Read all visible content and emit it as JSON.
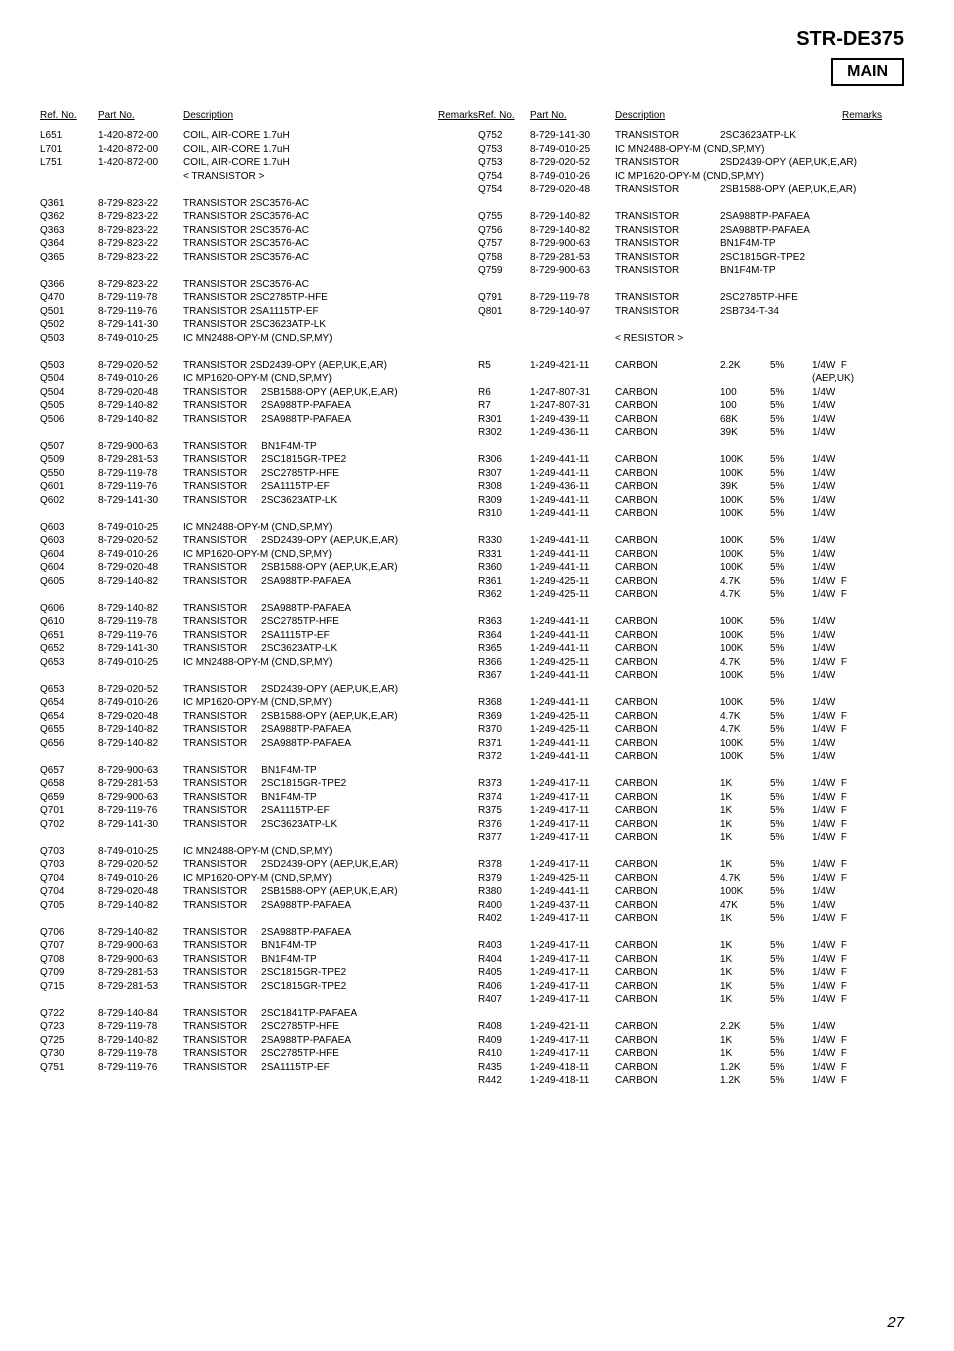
{
  "title": "STR-DE375",
  "mainLabel": "MAIN",
  "pageNumber": "27",
  "headers": {
    "ref1": "Ref. No.",
    "part1": "Part No.",
    "desc1": "Description",
    "rem1": "Remarks",
    "ref2": "Ref. No.",
    "part2": "Part No.",
    "desc2": "Description",
    "rem2": "Remarks"
  },
  "sectionTransistor": "< TRANSISTOR >",
  "sectionResistor": "< RESISTOR >",
  "leftRows": [
    {
      "r": "L651",
      "p": "1-420-872-00",
      "d": "COIL, AIR-CORE 1.7uH"
    },
    {
      "r": "L701",
      "p": "1-420-872-00",
      "d": "COIL, AIR-CORE 1.7uH"
    },
    {
      "r": "L751",
      "p": "1-420-872-00",
      "d": "COIL, AIR-CORE 1.7uH"
    },
    {
      "section": "transistor"
    },
    {
      "blank": true
    },
    {
      "r": "Q361",
      "p": "8-729-823-22",
      "d": "TRANSISTOR 2SC3576-AC"
    },
    {
      "r": "Q362",
      "p": "8-729-823-22",
      "d": "TRANSISTOR 2SC3576-AC"
    },
    {
      "r": "Q363",
      "p": "8-729-823-22",
      "d": "TRANSISTOR 2SC3576-AC"
    },
    {
      "r": "Q364",
      "p": "8-729-823-22",
      "d": "TRANSISTOR 2SC3576-AC"
    },
    {
      "r": "Q365",
      "p": "8-729-823-22",
      "d": "TRANSISTOR 2SC3576-AC"
    },
    {
      "blank": true
    },
    {
      "r": "Q366",
      "p": "8-729-823-22",
      "d": "TRANSISTOR 2SC3576-AC"
    },
    {
      "r": "Q470",
      "p": "8-729-119-78",
      "d": "TRANSISTOR 2SC2785TP-HFE"
    },
    {
      "r": "Q501",
      "p": "8-729-119-76",
      "d": "TRANSISTOR 2SA1115TP-EF"
    },
    {
      "r": "Q502",
      "p": "8-729-141-30",
      "d": "TRANSISTOR 2SC3623ATP-LK"
    },
    {
      "r": "Q503",
      "p": "8-749-010-25",
      "d": "IC MN2488-OPY-M (CND,SP,MY)"
    },
    {
      "blank": true
    },
    {
      "r": "Q503",
      "p": "8-729-020-52",
      "d": "TRANSISTOR 2SD2439-OPY (AEP,UK,E,AR)"
    },
    {
      "r": "Q504",
      "p": "8-749-010-26",
      "d": "IC MP1620-OPY-M (CND,SP,MY)"
    },
    {
      "r": "Q504",
      "p": "8-729-020-48",
      "d": "TRANSISTOR     2SB1588-OPY (AEP,UK,E,AR)"
    },
    {
      "r": "Q505",
      "p": "8-729-140-82",
      "d": "TRANSISTOR     2SA988TP-PAFAEA"
    },
    {
      "r": "Q506",
      "p": "8-729-140-82",
      "d": "TRANSISTOR     2SA988TP-PAFAEA"
    },
    {
      "blank": true
    },
    {
      "r": "Q507",
      "p": "8-729-900-63",
      "d": "TRANSISTOR     BN1F4M-TP"
    },
    {
      "r": "Q509",
      "p": "8-729-281-53",
      "d": "TRANSISTOR     2SC1815GR-TPE2"
    },
    {
      "r": "Q550",
      "p": "8-729-119-78",
      "d": "TRANSISTOR     2SC2785TP-HFE"
    },
    {
      "r": "Q601",
      "p": "8-729-119-76",
      "d": "TRANSISTOR     2SA1115TP-EF"
    },
    {
      "r": "Q602",
      "p": "8-729-141-30",
      "d": "TRANSISTOR     2SC3623ATP-LK"
    },
    {
      "blank": true
    },
    {
      "r": "Q603",
      "p": "8-749-010-25",
      "d": "IC MN2488-OPY-M (CND,SP,MY)"
    },
    {
      "r": "Q603",
      "p": "8-729-020-52",
      "d": "TRANSISTOR     2SD2439-OPY (AEP,UK,E,AR)"
    },
    {
      "r": "Q604",
      "p": "8-749-010-26",
      "d": "IC MP1620-OPY-M (CND,SP,MY)"
    },
    {
      "r": "Q604",
      "p": "8-729-020-48",
      "d": "TRANSISTOR     2SB1588-OPY (AEP,UK,E,AR)"
    },
    {
      "r": "Q605",
      "p": "8-729-140-82",
      "d": "TRANSISTOR     2SA988TP-PAFAEA"
    },
    {
      "blank": true
    },
    {
      "r": "Q606",
      "p": "8-729-140-82",
      "d": "TRANSISTOR     2SA988TP-PAFAEA"
    },
    {
      "r": "Q610",
      "p": "8-729-119-78",
      "d": "TRANSISTOR     2SC2785TP-HFE"
    },
    {
      "r": "Q651",
      "p": "8-729-119-76",
      "d": "TRANSISTOR     2SA1115TP-EF"
    },
    {
      "r": "Q652",
      "p": "8-729-141-30",
      "d": "TRANSISTOR     2SC3623ATP-LK"
    },
    {
      "r": "Q653",
      "p": "8-749-010-25",
      "d": "IC MN2488-OPY-M (CND,SP,MY)"
    },
    {
      "blank": true
    },
    {
      "r": "Q653",
      "p": "8-729-020-52",
      "d": "TRANSISTOR     2SD2439-OPY (AEP,UK,E,AR)"
    },
    {
      "r": "Q654",
      "p": "8-749-010-26",
      "d": "IC MP1620-OPY-M (CND,SP,MY)"
    },
    {
      "r": "Q654",
      "p": "8-729-020-48",
      "d": "TRANSISTOR     2SB1588-OPY (AEP,UK,E,AR)"
    },
    {
      "r": "Q655",
      "p": "8-729-140-82",
      "d": "TRANSISTOR     2SA988TP-PAFAEA"
    },
    {
      "r": "Q656",
      "p": "8-729-140-82",
      "d": "TRANSISTOR     2SA988TP-PAFAEA"
    },
    {
      "blank": true
    },
    {
      "r": "Q657",
      "p": "8-729-900-63",
      "d": "TRANSISTOR     BN1F4M-TP"
    },
    {
      "r": "Q658",
      "p": "8-729-281-53",
      "d": "TRANSISTOR     2SC1815GR-TPE2"
    },
    {
      "r": "Q659",
      "p": "8-729-900-63",
      "d": "TRANSISTOR     BN1F4M-TP"
    },
    {
      "r": "Q701",
      "p": "8-729-119-76",
      "d": "TRANSISTOR     2SA1115TP-EF"
    },
    {
      "r": "Q702",
      "p": "8-729-141-30",
      "d": "TRANSISTOR     2SC3623ATP-LK"
    },
    {
      "blank": true
    },
    {
      "r": "Q703",
      "p": "8-749-010-25",
      "d": "IC MN2488-OPY-M (CND,SP,MY)"
    },
    {
      "r": "Q703",
      "p": "8-729-020-52",
      "d": "TRANSISTOR     2SD2439-OPY (AEP,UK,E,AR)"
    },
    {
      "r": "Q704",
      "p": "8-749-010-26",
      "d": "IC MP1620-OPY-M (CND,SP,MY)"
    },
    {
      "r": "Q704",
      "p": "8-729-020-48",
      "d": "TRANSISTOR     2SB1588-OPY (AEP,UK,E,AR)"
    },
    {
      "r": "Q705",
      "p": "8-729-140-82",
      "d": "TRANSISTOR     2SA988TP-PAFAEA"
    },
    {
      "blank": true
    },
    {
      "r": "Q706",
      "p": "8-729-140-82",
      "d": "TRANSISTOR     2SA988TP-PAFAEA"
    },
    {
      "r": "Q707",
      "p": "8-729-900-63",
      "d": "TRANSISTOR     BN1F4M-TP"
    },
    {
      "r": "Q708",
      "p": "8-729-900-63",
      "d": "TRANSISTOR     BN1F4M-TP"
    },
    {
      "r": "Q709",
      "p": "8-729-281-53",
      "d": "TRANSISTOR     2SC1815GR-TPE2"
    },
    {
      "r": "Q715",
      "p": "8-729-281-53",
      "d": "TRANSISTOR     2SC1815GR-TPE2"
    },
    {
      "blank": true
    },
    {
      "r": "Q722",
      "p": "8-729-140-84",
      "d": "TRANSISTOR     2SC1841TP-PAFAEA"
    },
    {
      "r": "Q723",
      "p": "8-729-119-78",
      "d": "TRANSISTOR     2SC2785TP-HFE"
    },
    {
      "r": "Q725",
      "p": "8-729-140-82",
      "d": "TRANSISTOR     2SA988TP-PAFAEA"
    },
    {
      "r": "Q730",
      "p": "8-729-119-78",
      "d": "TRANSISTOR     2SC2785TP-HFE"
    },
    {
      "r": "Q751",
      "p": "8-729-119-76",
      "d": "TRANSISTOR     2SA1115TP-EF"
    }
  ],
  "rightRows": [
    {
      "r": "Q752",
      "p": "8-729-141-30",
      "d": "TRANSISTOR",
      "v": "2SC3623ATP-LK",
      "pct": "",
      "rm": ""
    },
    {
      "r": "Q753",
      "p": "8-749-010-25",
      "d": "IC MN2488-OPY-M (CND,SP,MY)",
      "v": "",
      "pct": "",
      "rm": ""
    },
    {
      "r": "Q753",
      "p": "8-729-020-52",
      "d": "TRANSISTOR",
      "v": "2SD2439-OPY (AEP,UK,E,AR)",
      "pct": "",
      "rm": ""
    },
    {
      "r": "Q754",
      "p": "8-749-010-26",
      "d": "IC MP1620-OPY-M (CND,SP,MY)",
      "v": "",
      "pct": "",
      "rm": ""
    },
    {
      "r": "Q754",
      "p": "8-729-020-48",
      "d": "TRANSISTOR",
      "v": "2SB1588-OPY (AEP,UK,E,AR)",
      "pct": "",
      "rm": ""
    },
    {
      "blank": true
    },
    {
      "r": "Q755",
      "p": "8-729-140-82",
      "d": "TRANSISTOR",
      "v": "2SA988TP-PAFAEA",
      "pct": "",
      "rm": ""
    },
    {
      "r": "Q756",
      "p": "8-729-140-82",
      "d": "TRANSISTOR",
      "v": "2SA988TP-PAFAEA",
      "pct": "",
      "rm": ""
    },
    {
      "r": "Q757",
      "p": "8-729-900-63",
      "d": "TRANSISTOR",
      "v": "BN1F4M-TP",
      "pct": "",
      "rm": ""
    },
    {
      "r": "Q758",
      "p": "8-729-281-53",
      "d": "TRANSISTOR",
      "v": "2SC1815GR-TPE2",
      "pct": "",
      "rm": ""
    },
    {
      "r": "Q759",
      "p": "8-729-900-63",
      "d": "TRANSISTOR",
      "v": "BN1F4M-TP",
      "pct": "",
      "rm": ""
    },
    {
      "blank": true
    },
    {
      "r": "Q791",
      "p": "8-729-119-78",
      "d": "TRANSISTOR",
      "v": "2SC2785TP-HFE",
      "pct": "",
      "rm": ""
    },
    {
      "r": "Q801",
      "p": "8-729-140-97",
      "d": "TRANSISTOR",
      "v": "2SB734-T-34",
      "pct": "",
      "rm": ""
    },
    {
      "blank": true
    },
    {
      "section": "resistor"
    },
    {
      "blank": true
    },
    {
      "r": "R5",
      "p": "1-249-421-11",
      "d": "CARBON",
      "v": "2.2K",
      "pct": "5%",
      "rm": "1/4W  F"
    },
    {
      "r": "",
      "p": "",
      "d": "",
      "v": "",
      "pct": "",
      "rm": "(AEP,UK)"
    },
    {
      "r": "R6",
      "p": "1-247-807-31",
      "d": "CARBON",
      "v": "100",
      "pct": "5%",
      "rm": "1/4W"
    },
    {
      "r": "R7",
      "p": "1-247-807-31",
      "d": "CARBON",
      "v": "100",
      "pct": "5%",
      "rm": "1/4W"
    },
    {
      "r": "R301",
      "p": "1-249-439-11",
      "d": "CARBON",
      "v": "68K",
      "pct": "5%",
      "rm": "1/4W"
    },
    {
      "r": "R302",
      "p": "1-249-436-11",
      "d": "CARBON",
      "v": "39K",
      "pct": "5%",
      "rm": "1/4W"
    },
    {
      "blank": true
    },
    {
      "r": "R306",
      "p": "1-249-441-11",
      "d": "CARBON",
      "v": "100K",
      "pct": "5%",
      "rm": "1/4W"
    },
    {
      "r": "R307",
      "p": "1-249-441-11",
      "d": "CARBON",
      "v": "100K",
      "pct": "5%",
      "rm": "1/4W"
    },
    {
      "r": "R308",
      "p": "1-249-436-11",
      "d": "CARBON",
      "v": "39K",
      "pct": "5%",
      "rm": "1/4W"
    },
    {
      "r": "R309",
      "p": "1-249-441-11",
      "d": "CARBON",
      "v": "100K",
      "pct": "5%",
      "rm": "1/4W"
    },
    {
      "r": "R310",
      "p": "1-249-441-11",
      "d": "CARBON",
      "v": "100K",
      "pct": "5%",
      "rm": "1/4W"
    },
    {
      "blank": true
    },
    {
      "r": "R330",
      "p": "1-249-441-11",
      "d": "CARBON",
      "v": "100K",
      "pct": "5%",
      "rm": "1/4W"
    },
    {
      "r": "R331",
      "p": "1-249-441-11",
      "d": "CARBON",
      "v": "100K",
      "pct": "5%",
      "rm": "1/4W"
    },
    {
      "r": "R360",
      "p": "1-249-441-11",
      "d": "CARBON",
      "v": "100K",
      "pct": "5%",
      "rm": "1/4W"
    },
    {
      "r": "R361",
      "p": "1-249-425-11",
      "d": "CARBON",
      "v": "4.7K",
      "pct": "5%",
      "rm": "1/4W  F"
    },
    {
      "r": "R362",
      "p": "1-249-425-11",
      "d": "CARBON",
      "v": "4.7K",
      "pct": "5%",
      "rm": "1/4W  F"
    },
    {
      "blank": true
    },
    {
      "r": "R363",
      "p": "1-249-441-11",
      "d": "CARBON",
      "v": "100K",
      "pct": "5%",
      "rm": "1/4W"
    },
    {
      "r": "R364",
      "p": "1-249-441-11",
      "d": "CARBON",
      "v": "100K",
      "pct": "5%",
      "rm": "1/4W"
    },
    {
      "r": "R365",
      "p": "1-249-441-11",
      "d": "CARBON",
      "v": "100K",
      "pct": "5%",
      "rm": "1/4W"
    },
    {
      "r": "R366",
      "p": "1-249-425-11",
      "d": "CARBON",
      "v": "4.7K",
      "pct": "5%",
      "rm": "1/4W  F"
    },
    {
      "r": "R367",
      "p": "1-249-441-11",
      "d": "CARBON",
      "v": "100K",
      "pct": "5%",
      "rm": "1/4W"
    },
    {
      "blank": true
    },
    {
      "r": "R368",
      "p": "1-249-441-11",
      "d": "CARBON",
      "v": "100K",
      "pct": "5%",
      "rm": "1/4W"
    },
    {
      "r": "R369",
      "p": "1-249-425-11",
      "d": "CARBON",
      "v": "4.7K",
      "pct": "5%",
      "rm": "1/4W  F"
    },
    {
      "r": "R370",
      "p": "1-249-425-11",
      "d": "CARBON",
      "v": "4.7K",
      "pct": "5%",
      "rm": "1/4W  F"
    },
    {
      "r": "R371",
      "p": "1-249-441-11",
      "d": "CARBON",
      "v": "100K",
      "pct": "5%",
      "rm": "1/4W"
    },
    {
      "r": "R372",
      "p": "1-249-441-11",
      "d": "CARBON",
      "v": "100K",
      "pct": "5%",
      "rm": "1/4W"
    },
    {
      "blank": true
    },
    {
      "r": "R373",
      "p": "1-249-417-11",
      "d": "CARBON",
      "v": "1K",
      "pct": "5%",
      "rm": "1/4W  F"
    },
    {
      "r": "R374",
      "p": "1-249-417-11",
      "d": "CARBON",
      "v": "1K",
      "pct": "5%",
      "rm": "1/4W  F"
    },
    {
      "r": "R375",
      "p": "1-249-417-11",
      "d": "CARBON",
      "v": "1K",
      "pct": "5%",
      "rm": "1/4W  F"
    },
    {
      "r": "R376",
      "p": "1-249-417-11",
      "d": "CARBON",
      "v": "1K",
      "pct": "5%",
      "rm": "1/4W  F"
    },
    {
      "r": "R377",
      "p": "1-249-417-11",
      "d": "CARBON",
      "v": "1K",
      "pct": "5%",
      "rm": "1/4W  F"
    },
    {
      "blank": true
    },
    {
      "r": "R378",
      "p": "1-249-417-11",
      "d": "CARBON",
      "v": "1K",
      "pct": "5%",
      "rm": "1/4W  F"
    },
    {
      "r": "R379",
      "p": "1-249-425-11",
      "d": "CARBON",
      "v": "4.7K",
      "pct": "5%",
      "rm": "1/4W  F"
    },
    {
      "r": "R380",
      "p": "1-249-441-11",
      "d": "CARBON",
      "v": "100K",
      "pct": "5%",
      "rm": "1/4W"
    },
    {
      "r": "R400",
      "p": "1-249-437-11",
      "d": "CARBON",
      "v": "47K",
      "pct": "5%",
      "rm": "1/4W"
    },
    {
      "r": "R402",
      "p": "1-249-417-11",
      "d": "CARBON",
      "v": "1K",
      "pct": "5%",
      "rm": "1/4W  F"
    },
    {
      "blank": true
    },
    {
      "r": "R403",
      "p": "1-249-417-11",
      "d": "CARBON",
      "v": "1K",
      "pct": "5%",
      "rm": "1/4W  F"
    },
    {
      "r": "R404",
      "p": "1-249-417-11",
      "d": "CARBON",
      "v": "1K",
      "pct": "5%",
      "rm": "1/4W  F"
    },
    {
      "r": "R405",
      "p": "1-249-417-11",
      "d": "CARBON",
      "v": "1K",
      "pct": "5%",
      "rm": "1/4W  F"
    },
    {
      "r": "R406",
      "p": "1-249-417-11",
      "d": "CARBON",
      "v": "1K",
      "pct": "5%",
      "rm": "1/4W  F"
    },
    {
      "r": "R407",
      "p": "1-249-417-11",
      "d": "CARBON",
      "v": "1K",
      "pct": "5%",
      "rm": "1/4W  F"
    },
    {
      "blank": true
    },
    {
      "r": "R408",
      "p": "1-249-421-11",
      "d": "CARBON",
      "v": "2.2K",
      "pct": "5%",
      "rm": "1/4W"
    },
    {
      "r": "R409",
      "p": "1-249-417-11",
      "d": "CARBON",
      "v": "1K",
      "pct": "5%",
      "rm": "1/4W  F"
    },
    {
      "r": "R410",
      "p": "1-249-417-11",
      "d": "CARBON",
      "v": "1K",
      "pct": "5%",
      "rm": "1/4W  F"
    },
    {
      "r": "R435",
      "p": "1-249-418-11",
      "d": "CARBON",
      "v": "1.2K",
      "pct": "5%",
      "rm": "1/4W  F"
    },
    {
      "r": "R442",
      "p": "1-249-418-11",
      "d": "CARBON",
      "v": "1.2K",
      "pct": "5%",
      "rm": "1/4W  F"
    }
  ]
}
